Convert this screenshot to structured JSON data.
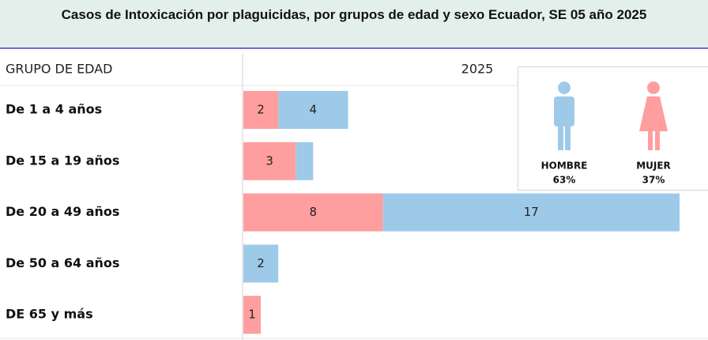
{
  "chart_data": {
    "type": "stacked-bar-horizontal",
    "title": "Casos de Intoxicación por plaguicidas, por grupos de edad y sexo Ecuador, SE 05 año 2025",
    "category_header": "GRUPO DE EDAD",
    "value_header": "2025",
    "categories": [
      "De 1 a 4 años",
      "De 15 a 19 años",
      "De 20 a 49 años",
      "De 50 a 64 años",
      "DE 65 y más"
    ],
    "series": [
      {
        "name": "MUJER",
        "color": "#ff9e9e",
        "values": [
          2,
          3,
          8,
          null,
          1
        ],
        "share_label": "37%"
      },
      {
        "name": "HOMBRE",
        "color": "#9ecae9",
        "values": [
          4,
          1,
          17,
          2,
          null
        ],
        "value_labels": [
          "4",
          null,
          "17",
          "2",
          null
        ],
        "share_label": "63%"
      }
    ],
    "xlim": [
      0,
      25
    ]
  }
}
